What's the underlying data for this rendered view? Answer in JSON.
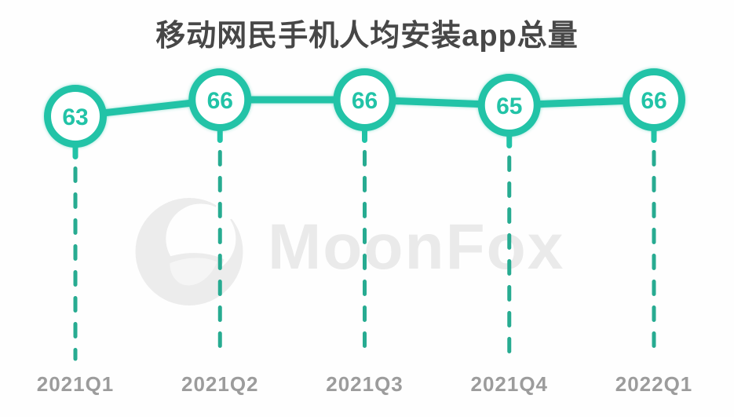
{
  "title": "移动网民手机人均安装app总量",
  "watermark": {
    "text": "MoonFox",
    "logo_icon": "moonfox-logo"
  },
  "colors": {
    "teal": "#22c3a7",
    "dash_teal": "#27ab91",
    "title_text": "#474747",
    "axis_label": "#9c9c9c",
    "watermark_gray": "#ebebeb",
    "background": "#fefefe"
  },
  "chart_data": {
    "type": "line",
    "title": "移动网民手机人均安装app总量",
    "categories": [
      "2021Q1",
      "2021Q2",
      "2021Q3",
      "2021Q4",
      "2022Q1"
    ],
    "values": [
      63,
      66,
      66,
      65,
      66
    ],
    "series": [
      {
        "name": "人均安装app总量",
        "values": [
          63,
          66,
          66,
          65,
          66
        ]
      }
    ],
    "xlabel": "",
    "ylabel": "",
    "ylim": [
      60,
      70
    ],
    "grid": false,
    "legend": false,
    "marker": "circle-with-value-label",
    "drop_lines": "dashed-vertical-to-x-axis"
  }
}
